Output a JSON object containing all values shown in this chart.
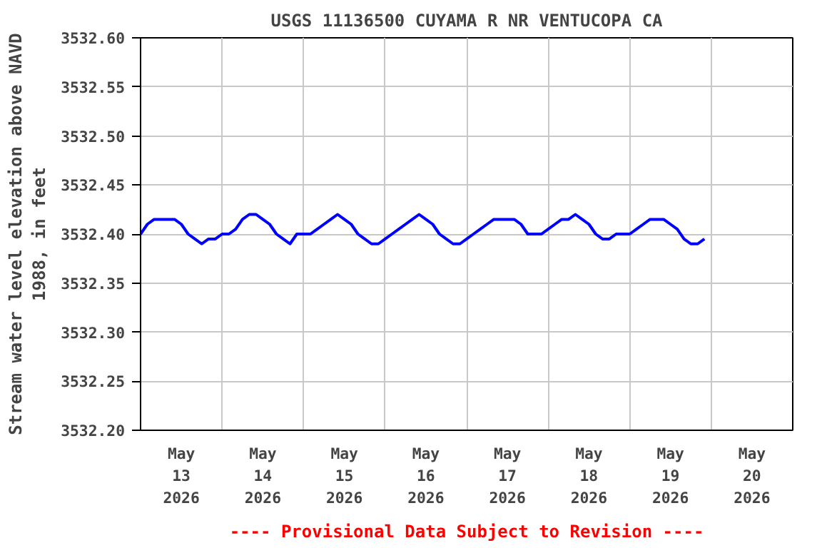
{
  "chart_data": {
    "type": "line",
    "title": "USGS 11136500 CUYAMA R NR VENTUCOPA CA",
    "ylabel": "Stream water level elevation above NAVD\n1988, in feet",
    "annotations": [
      "---- Provisional Data Subject to Revision ----"
    ],
    "x": [
      "2026-05-13T00:00",
      "2026-05-13T02:00",
      "2026-05-13T04:00",
      "2026-05-13T06:00",
      "2026-05-13T08:00",
      "2026-05-13T10:00",
      "2026-05-13T12:00",
      "2026-05-13T14:00",
      "2026-05-13T16:00",
      "2026-05-13T18:00",
      "2026-05-13T20:00",
      "2026-05-13T22:00",
      "2026-05-14T00:00",
      "2026-05-14T02:00",
      "2026-05-14T04:00",
      "2026-05-14T06:00",
      "2026-05-14T08:00",
      "2026-05-14T10:00",
      "2026-05-14T12:00",
      "2026-05-14T14:00",
      "2026-05-14T16:00",
      "2026-05-14T18:00",
      "2026-05-14T20:00",
      "2026-05-14T22:00",
      "2026-05-15T00:00",
      "2026-05-15T02:00",
      "2026-05-15T04:00",
      "2026-05-15T06:00",
      "2026-05-15T08:00",
      "2026-05-15T10:00",
      "2026-05-15T12:00",
      "2026-05-15T14:00",
      "2026-05-15T16:00",
      "2026-05-15T18:00",
      "2026-05-15T20:00",
      "2026-05-15T22:00",
      "2026-05-16T00:00",
      "2026-05-16T02:00",
      "2026-05-16T04:00",
      "2026-05-16T06:00",
      "2026-05-16T08:00",
      "2026-05-16T10:00",
      "2026-05-16T12:00",
      "2026-05-16T14:00",
      "2026-05-16T16:00",
      "2026-05-16T18:00",
      "2026-05-16T20:00",
      "2026-05-16T22:00",
      "2026-05-17T00:00",
      "2026-05-17T02:00",
      "2026-05-17T04:00",
      "2026-05-17T06:00",
      "2026-05-17T08:00",
      "2026-05-17T10:00",
      "2026-05-17T12:00",
      "2026-05-17T14:00",
      "2026-05-17T16:00",
      "2026-05-17T18:00",
      "2026-05-17T20:00",
      "2026-05-17T22:00",
      "2026-05-18T00:00",
      "2026-05-18T02:00",
      "2026-05-18T04:00",
      "2026-05-18T06:00",
      "2026-05-18T08:00",
      "2026-05-18T10:00",
      "2026-05-18T12:00",
      "2026-05-18T14:00",
      "2026-05-18T16:00",
      "2026-05-18T18:00",
      "2026-05-18T20:00",
      "2026-05-18T22:00",
      "2026-05-19T00:00",
      "2026-05-19T02:00",
      "2026-05-19T04:00",
      "2026-05-19T06:00",
      "2026-05-19T08:00",
      "2026-05-19T10:00",
      "2026-05-19T12:00",
      "2026-05-19T14:00",
      "2026-05-19T16:00",
      "2026-05-19T18:00",
      "2026-05-19T20:00",
      "2026-05-19T22:00"
    ],
    "series": [
      {
        "color": "#0000ff",
        "values": [
          3532.4,
          3532.41,
          3532.415,
          3532.415,
          3532.415,
          3532.415,
          3532.41,
          3532.4,
          3532.395,
          3532.39,
          3532.395,
          3532.395,
          3532.4,
          3532.4,
          3532.405,
          3532.415,
          3532.42,
          3532.42,
          3532.415,
          3532.41,
          3532.4,
          3532.395,
          3532.39,
          3532.4,
          3532.4,
          3532.4,
          3532.405,
          3532.41,
          3532.415,
          3532.42,
          3532.415,
          3532.41,
          3532.4,
          3532.395,
          3532.39,
          3532.39,
          3532.395,
          3532.4,
          3532.405,
          3532.41,
          3532.415,
          3532.42,
          3532.415,
          3532.41,
          3532.4,
          3532.395,
          3532.39,
          3532.39,
          3532.395,
          3532.4,
          3532.405,
          3532.41,
          3532.415,
          3532.415,
          3532.415,
          3532.415,
          3532.41,
          3532.4,
          3532.4,
          3532.4,
          3532.405,
          3532.41,
          3532.415,
          3532.415,
          3532.42,
          3532.415,
          3532.41,
          3532.4,
          3532.395,
          3532.395,
          3532.4,
          3532.4,
          3532.4,
          3532.405,
          3532.41,
          3532.415,
          3532.415,
          3532.415,
          3532.41,
          3532.405,
          3532.395,
          3532.39,
          3532.39,
          3532.395
        ]
      }
    ],
    "xlim": [
      "2026-05-13T00:00",
      "2026-05-21T00:00"
    ],
    "xticks": [
      {
        "value": "2026-05-13T12:00",
        "label": "May\n13\n2026"
      },
      {
        "value": "2026-05-14T12:00",
        "label": "May\n14\n2026"
      },
      {
        "value": "2026-05-15T12:00",
        "label": "May\n15\n2026"
      },
      {
        "value": "2026-05-16T12:00",
        "label": "May\n16\n2026"
      },
      {
        "value": "2026-05-17T12:00",
        "label": "May\n17\n2026"
      },
      {
        "value": "2026-05-18T12:00",
        "label": "May\n18\n2026"
      },
      {
        "value": "2026-05-19T12:00",
        "label": "May\n19\n2026"
      },
      {
        "value": "2026-05-20T12:00",
        "label": "May\n20\n2026"
      },
      {
        "value": "2026-05-14T00:00",
        "label": null
      },
      {
        "value": "2026-05-15T00:00",
        "label": null
      },
      {
        "value": "2026-05-16T00:00",
        "label": null
      },
      {
        "value": "2026-05-17T00:00",
        "label": null
      },
      {
        "value": "2026-05-18T00:00",
        "label": null
      },
      {
        "value": "2026-05-19T00:00",
        "label": null
      },
      {
        "value": "2026-05-20T00:00",
        "label": null
      }
    ],
    "ylim": [
      3532.2,
      3532.6
    ],
    "yticks": [
      {
        "value": 3532.2,
        "label": "3532.20"
      },
      {
        "value": 3532.25,
        "label": "3532.25"
      },
      {
        "value": 3532.3,
        "label": "3532.30"
      },
      {
        "value": 3532.35,
        "label": "3532.35"
      },
      {
        "value": 3532.4,
        "label": "3532.40"
      },
      {
        "value": 3532.45,
        "label": "3532.45"
      },
      {
        "value": 3532.5,
        "label": "3532.50"
      },
      {
        "value": 3532.55,
        "label": "3532.55"
      },
      {
        "value": 3532.6,
        "label": "3532.60"
      }
    ],
    "grid": true,
    "marker": "none",
    "line_style": "solid"
  }
}
